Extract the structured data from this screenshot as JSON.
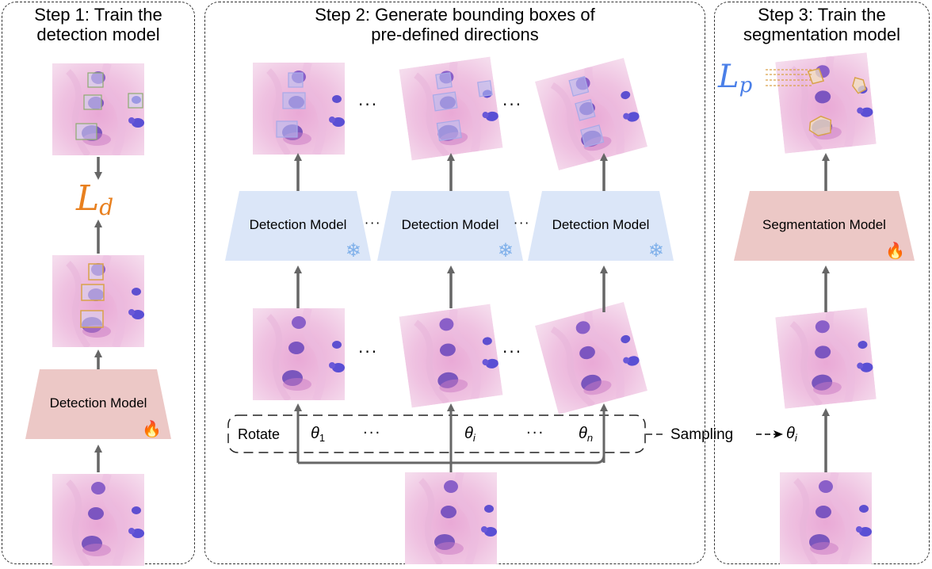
{
  "steps": {
    "step1_title_line1": "Step 1: Train the",
    "step1_title_line2": "detection model",
    "step2_title_line1": "Step 2: Generate bounding boxes of",
    "step2_title_line2": "pre-defined directions",
    "step3_title_line1": "Step 3: Train the",
    "step3_title_line2": "segmentation model"
  },
  "models": {
    "detection_label": "Detection Model",
    "segmentation_label": "Segmentation Model",
    "fire_icon": "🔥",
    "snow_icon": "❄"
  },
  "losses": {
    "detection_base": "L",
    "detection_sub": "d",
    "pixel_base": "L",
    "pixel_sub": "p"
  },
  "rotate": {
    "label": "Rotate",
    "theta": "θ",
    "sub_1": "1",
    "sub_i": "i",
    "sub_n": "n",
    "ellipsis": "···"
  },
  "sampling": {
    "label": "Sampling",
    "theta": "θ",
    "sub": "i"
  },
  "colors": {
    "detection_model": "#dbe6f8",
    "segmentation_model": "#ecc8c6",
    "loss_d": "#e8801f",
    "loss_p": "#4a7fe8",
    "arrow": "#666666",
    "box_green": "#8faa70",
    "box_orange": "#d9a24a",
    "box_blue": "#a8a9e8"
  }
}
